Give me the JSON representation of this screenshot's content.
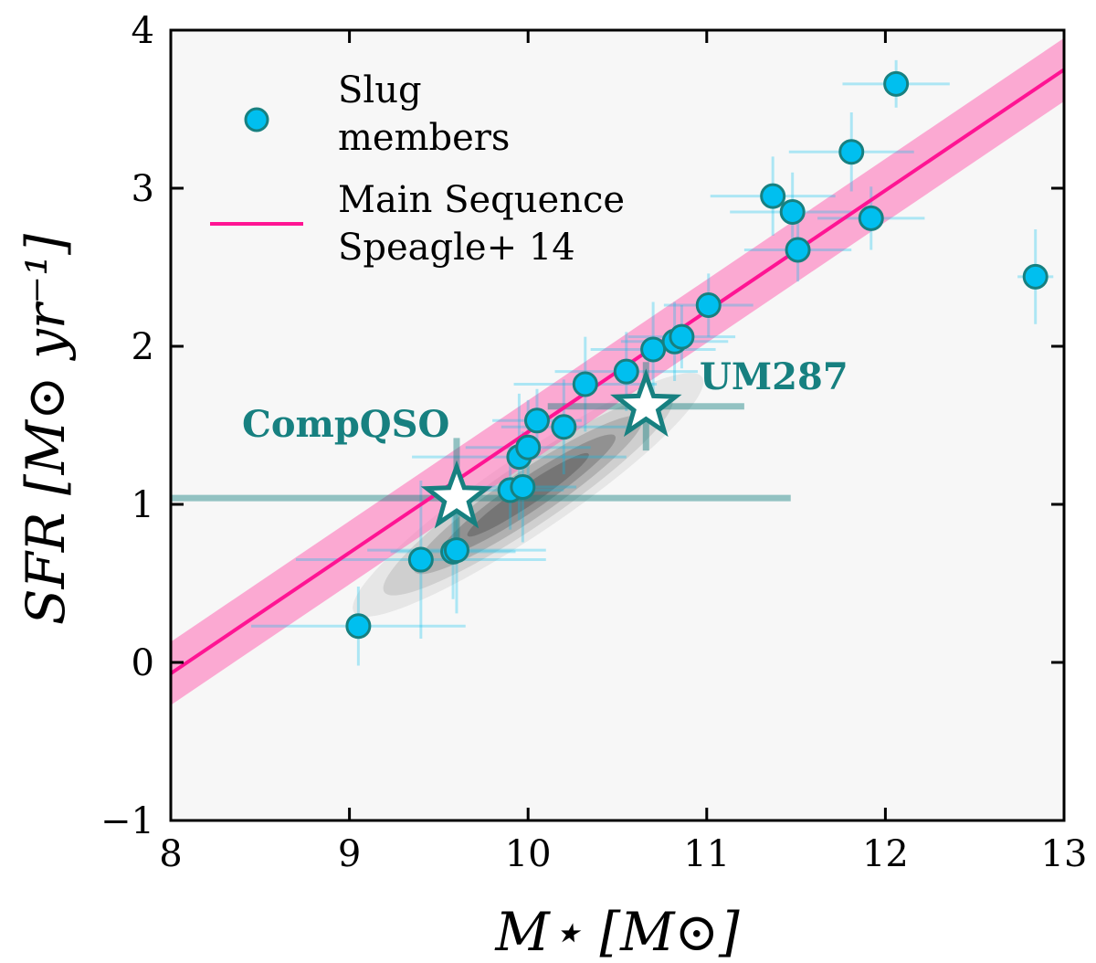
{
  "chart_data": {
    "type": "scatter",
    "title": "",
    "xlabel": "M⋆ [M⊙]",
    "ylabel": "SFR [M⊙ yr⁻¹]",
    "xlim": [
      8,
      13
    ],
    "ylim": [
      -1,
      4
    ],
    "xticks": [
      "8",
      "9",
      "10",
      "11",
      "12",
      "13"
    ],
    "yticks": [
      "−1",
      "0",
      "1",
      "2",
      "3",
      "4"
    ],
    "legend_position": "top-left",
    "series": [
      {
        "name": "Slug members",
        "legend_line1": "Slug",
        "legend_line2": "members",
        "color": "#00bfef",
        "edge_color": "#178080",
        "points": [
          {
            "x": 9.05,
            "y": 0.23,
            "xerr": 0.6,
            "yerr": 0.25
          },
          {
            "x": 9.4,
            "y": 0.65,
            "xerr": 0.7,
            "yerr": 0.5
          },
          {
            "x": 9.58,
            "y": 0.7,
            "xerr": 0.35,
            "yerr": 0.3
          },
          {
            "x": 9.6,
            "y": 0.71,
            "xerr": 0.5,
            "yerr": 0.4
          },
          {
            "x": 9.9,
            "y": 1.09,
            "xerr": 0.3,
            "yerr": 0.25
          },
          {
            "x": 9.95,
            "y": 1.3,
            "xerr": 0.6,
            "yerr": 0.4
          },
          {
            "x": 9.97,
            "y": 1.11,
            "xerr": 0.3,
            "yerr": 0.35
          },
          {
            "x": 10.0,
            "y": 1.36,
            "xerr": 0.35,
            "yerr": 0.3
          },
          {
            "x": 10.05,
            "y": 1.53,
            "xerr": 0.25,
            "yerr": 0.2
          },
          {
            "x": 10.2,
            "y": 1.49,
            "xerr": 0.35,
            "yerr": 0.3
          },
          {
            "x": 10.32,
            "y": 1.76,
            "xerr": 0.4,
            "yerr": 0.3
          },
          {
            "x": 10.55,
            "y": 1.84,
            "xerr": 0.4,
            "yerr": 0.25
          },
          {
            "x": 10.7,
            "y": 1.98,
            "xerr": 0.35,
            "yerr": 0.3
          },
          {
            "x": 10.82,
            "y": 2.03,
            "xerr": 0.3,
            "yerr": 0.25
          },
          {
            "x": 10.86,
            "y": 2.06,
            "xerr": 0.3,
            "yerr": 0.2
          },
          {
            "x": 11.01,
            "y": 2.26,
            "xerr": 0.25,
            "yerr": 0.2
          },
          {
            "x": 11.37,
            "y": 2.95,
            "xerr": 0.35,
            "yerr": 0.25
          },
          {
            "x": 11.48,
            "y": 2.85,
            "xerr": 0.35,
            "yerr": 0.25
          },
          {
            "x": 11.51,
            "y": 2.61,
            "xerr": 0.3,
            "yerr": 0.2
          },
          {
            "x": 11.81,
            "y": 3.23,
            "xerr": 0.35,
            "yerr": 0.25
          },
          {
            "x": 11.92,
            "y": 2.81,
            "xerr": 0.3,
            "yerr": 0.2
          },
          {
            "x": 12.06,
            "y": 3.66,
            "xerr": 0.3,
            "yerr": 0.15
          },
          {
            "x": 12.84,
            "y": 2.44,
            "xerr": 0.1,
            "yerr": 0.3
          }
        ]
      },
      {
        "name": "Main Sequence Speagle+ 14",
        "legend_line1": "Main Sequence",
        "legend_line2": "Speagle+ 14",
        "type": "line",
        "color": "#ff1493",
        "band_color": "#ff69b4",
        "x": [
          8,
          13
        ],
        "y": [
          -0.07,
          3.75
        ],
        "band_halfwidth": 0.2
      }
    ],
    "annotations": [
      {
        "label": "CompQSO",
        "x": 9.6,
        "y": 1.04,
        "xerr": 1.87,
        "yerr": 0.38,
        "color": "#178080"
      },
      {
        "label": "UM287",
        "x": 10.66,
        "y": 1.62,
        "xerr": 0.55,
        "yerr": 0.28,
        "color": "#178080"
      }
    ],
    "density_contour": {
      "color": "#555555",
      "center_x": 10.0,
      "center_y": 1.06,
      "direction": "along main sequence"
    }
  }
}
